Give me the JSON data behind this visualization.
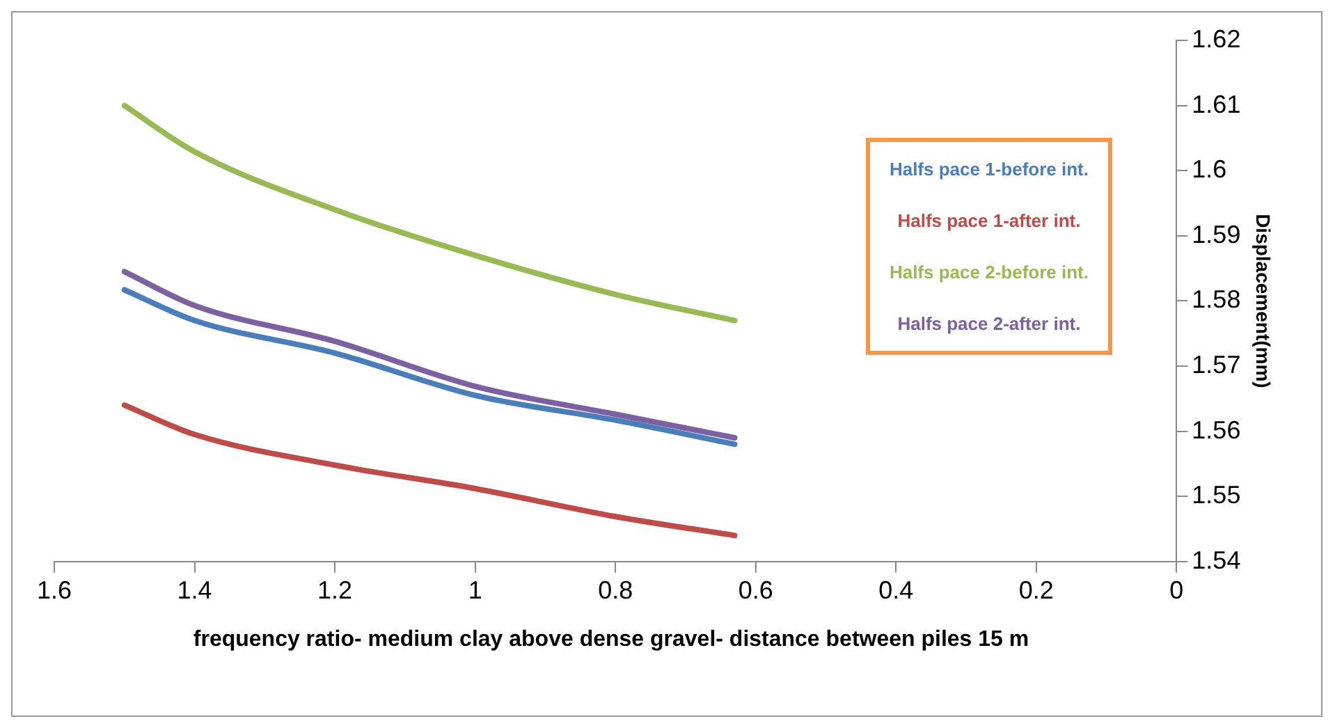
{
  "chart_data": {
    "type": "line",
    "xlabel": "frequency ratio-  medium clay above dense gravel- distance between piles 15 m",
    "ylabel": "Displacement(mm)",
    "xlim": [
      1.6,
      0
    ],
    "xticks": [
      1.6,
      1.4,
      1.2,
      1,
      0.8,
      0.6,
      0.4,
      0.2,
      0
    ],
    "ylim": [
      1.54,
      1.62
    ],
    "yticks": [
      1.54,
      1.55,
      1.56,
      1.57,
      1.58,
      1.59,
      1.6,
      1.61,
      1.62
    ],
    "grid": false,
    "legend": "right",
    "marker": "none",
    "line_style": "solid",
    "x": [
      1.5,
      1.4,
      1.2,
      1.0,
      0.8,
      0.63
    ],
    "series": [
      {
        "name": "Halfs pace 1-before int.",
        "color": "#4a7ebb",
        "values": [
          1.5817,
          1.577,
          1.572,
          1.5655,
          1.5617,
          1.558
        ]
      },
      {
        "name": "Halfs pace 1-after int.",
        "color": "#be4b48",
        "values": [
          1.564,
          1.5595,
          1.5548,
          1.5512,
          1.5469,
          1.544
        ]
      },
      {
        "name": "Halfs pace 2-before int.",
        "color": "#98b954",
        "values": [
          1.61,
          1.6029,
          1.594,
          1.587,
          1.581,
          1.577
        ]
      },
      {
        "name": "Halfs pace 2-after int.",
        "color": "#7d60a0",
        "values": [
          1.5845,
          1.5793,
          1.5738,
          1.5669,
          1.5626,
          1.559
        ]
      }
    ]
  }
}
